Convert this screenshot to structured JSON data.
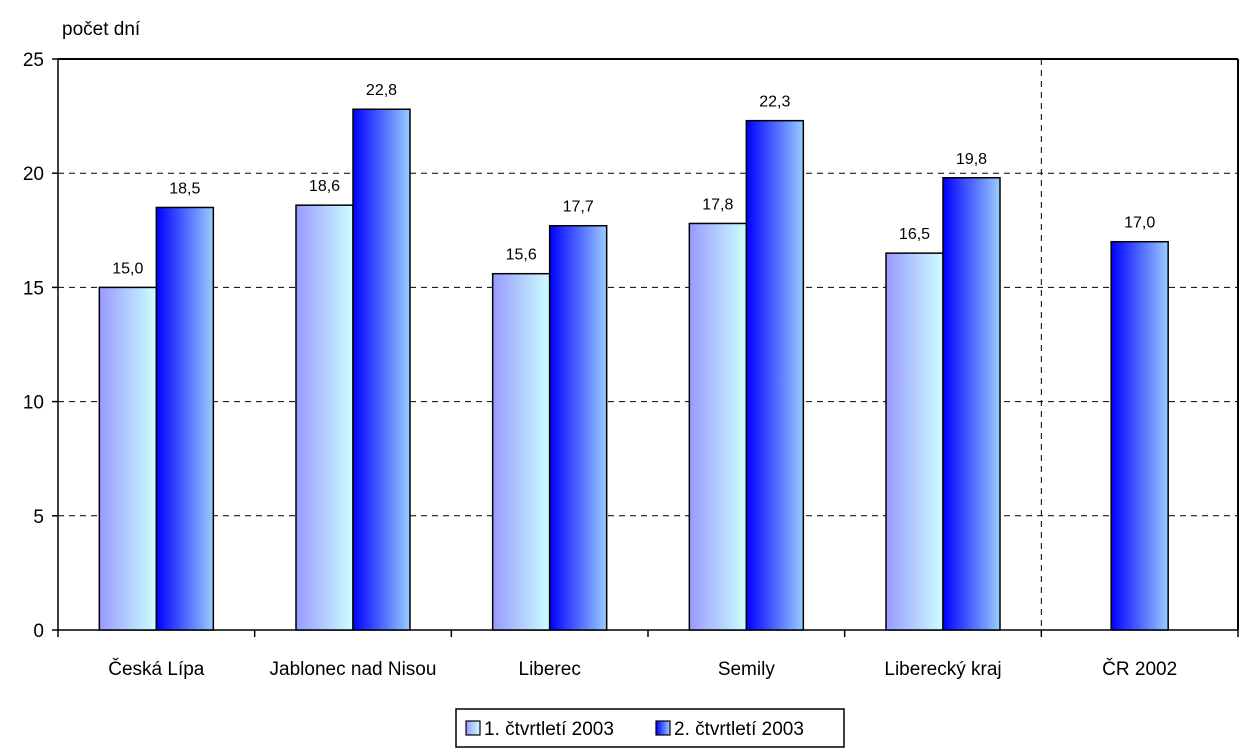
{
  "chart_data": {
    "type": "bar",
    "title": "",
    "xlabel": "",
    "ylabel": "počet dní",
    "ylim": [
      0,
      25
    ],
    "yticks": [
      0,
      5,
      10,
      15,
      20,
      25
    ],
    "grid": true,
    "legend_position": "bottom",
    "categories": [
      "Česká Lípa",
      "Jablonec nad Nisou",
      "Liberec",
      "Semily",
      "Liberecký kraj",
      "ČR 2002"
    ],
    "series": [
      {
        "name": "1. čtvrtletí 2003",
        "values": [
          15.0,
          18.6,
          15.6,
          17.8,
          16.5,
          null
        ],
        "labels": [
          "15,0",
          "18,6",
          "15,6",
          "17,8",
          "16,5",
          ""
        ],
        "color_light": "#ccffff",
        "color_dark": "#9999ff"
      },
      {
        "name": "2. čtvrtletí 2003",
        "values": [
          18.5,
          22.8,
          17.7,
          22.3,
          19.8,
          17.0
        ],
        "labels": [
          "18,5",
          "22,8",
          "17,7",
          "22,3",
          "19,8",
          "17,0"
        ],
        "color_light": "#99ccff",
        "color_dark": "#0000ff"
      }
    ]
  }
}
